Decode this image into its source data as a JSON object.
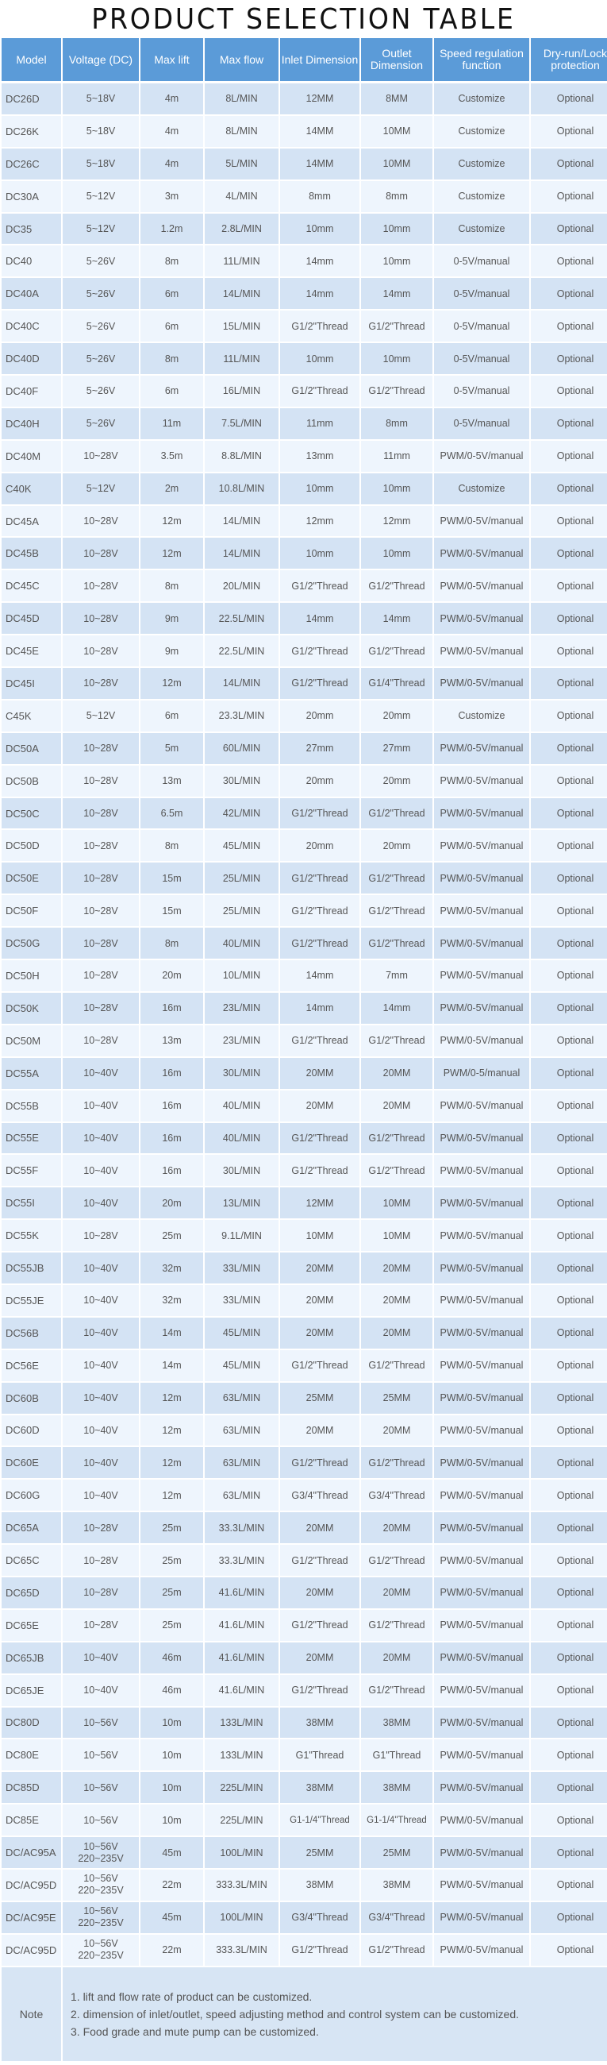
{
  "title": "PRODUCT SELECTION TABLE",
  "headers": [
    "Model",
    "Voltage (DC)",
    "Max lift",
    "Max flow",
    "Inlet Dimension",
    "Outlet Dimension",
    "Speed regulation function",
    "Dry-run/Lock protection"
  ],
  "rows": [
    [
      "DC26D",
      "5~18V",
      "4m",
      "8L/MIN",
      "12MM",
      "8MM",
      "Customize",
      "Optional"
    ],
    [
      "DC26K",
      "5~18V",
      "4m",
      "8L/MIN",
      "14MM",
      "10MM",
      "Customize",
      "Optional"
    ],
    [
      "DC26C",
      "5~18V",
      "4m",
      "5L/MIN",
      "14MM",
      "10MM",
      "Customize",
      "Optional"
    ],
    [
      "DC30A",
      "5~12V",
      "3m",
      "4L/MIN",
      "8mm",
      "8mm",
      "Customize",
      "Optional"
    ],
    [
      "DC35",
      "5~12V",
      "1.2m",
      "2.8L/MIN",
      "10mm",
      "10mm",
      "Customize",
      "Optional"
    ],
    [
      "DC40",
      "5~26V",
      "8m",
      "11L/MIN",
      "14mm",
      "10mm",
      "0-5V/manual",
      "Optional"
    ],
    [
      "DC40A",
      "5~26V",
      "6m",
      "14L/MIN",
      "14mm",
      "14mm",
      "0-5V/manual",
      "Optional"
    ],
    [
      "DC40C",
      "5~26V",
      "6m",
      "15L/MIN",
      "G1/2\"Thread",
      "G1/2\"Thread",
      "0-5V/manual",
      "Optional"
    ],
    [
      "DC40D",
      "5~26V",
      "8m",
      "11L/MIN",
      "10mm",
      "10mm",
      "0-5V/manual",
      "Optional"
    ],
    [
      "DC40F",
      "5~26V",
      "6m",
      "16L/MIN",
      "G1/2\"Thread",
      "G1/2\"Thread",
      "0-5V/manual",
      "Optional"
    ],
    [
      "DC40H",
      "5~26V",
      "11m",
      "7.5L/MIN",
      "11mm",
      "8mm",
      "0-5V/manual",
      "Optional"
    ],
    [
      "DC40M",
      "10~28V",
      "3.5m",
      "8.8L/MIN",
      "13mm",
      "11mm",
      "PWM/0-5V/manual",
      "Optional"
    ],
    [
      "C40K",
      "5~12V",
      "2m",
      "10.8L/MIN",
      "10mm",
      "10mm",
      "Customize",
      "Optional"
    ],
    [
      "DC45A",
      "10~28V",
      "12m",
      "14L/MIN",
      "12mm",
      "12mm",
      "PWM/0-5V/manual",
      "Optional"
    ],
    [
      "DC45B",
      "10~28V",
      "12m",
      "14L/MIN",
      "10mm",
      "10mm",
      "PWM/0-5V/manual",
      "Optional"
    ],
    [
      "DC45C",
      "10~28V",
      "8m",
      "20L/MIN",
      "G1/2\"Thread",
      "G1/2\"Thread",
      "PWM/0-5V/manual",
      "Optional"
    ],
    [
      "DC45D",
      "10~28V",
      "9m",
      "22.5L/MIN",
      "14mm",
      "14mm",
      "PWM/0-5V/manual",
      "Optional"
    ],
    [
      "DC45E",
      "10~28V",
      "9m",
      "22.5L/MIN",
      "G1/2\"Thread",
      "G1/2\"Thread",
      "PWM/0-5V/manual",
      "Optional"
    ],
    [
      "DC45I",
      "10~28V",
      "12m",
      "14L/MIN",
      "G1/2\"Thread",
      "G1/4\"Thread",
      "PWM/0-5V/manual",
      "Optional"
    ],
    [
      "C45K",
      "5~12V",
      "6m",
      "23.3L/MIN",
      "20mm",
      "20mm",
      "Customize",
      "Optional"
    ],
    [
      "DC50A",
      "10~28V",
      "5m",
      "60L/MIN",
      "27mm",
      "27mm",
      "PWM/0-5V/manual",
      "Optional"
    ],
    [
      "DC50B",
      "10~28V",
      "13m",
      "30L/MIN",
      "20mm",
      "20mm",
      "PWM/0-5V/manual",
      "Optional"
    ],
    [
      "DC50C",
      "10~28V",
      "6.5m",
      "42L/MIN",
      "G1/2\"Thread",
      "G1/2\"Thread",
      "PWM/0-5V/manual",
      "Optional"
    ],
    [
      "DC50D",
      "10~28V",
      "8m",
      "45L/MIN",
      "20mm",
      "20mm",
      "PWM/0-5V/manual",
      "Optional"
    ],
    [
      "DC50E",
      "10~28V",
      "15m",
      "25L/MIN",
      "G1/2\"Thread",
      "G1/2\"Thread",
      "PWM/0-5V/manual",
      "Optional"
    ],
    [
      "DC50F",
      "10~28V",
      "15m",
      "25L/MIN",
      "G1/2\"Thread",
      "G1/2\"Thread",
      "PWM/0-5V/manual",
      "Optional"
    ],
    [
      "DC50G",
      "10~28V",
      "8m",
      "40L/MIN",
      "G1/2\"Thread",
      "G1/2\"Thread",
      "PWM/0-5V/manual",
      "Optional"
    ],
    [
      "DC50H",
      "10~28V",
      "20m",
      "10L/MIN",
      "14mm",
      "7mm",
      "PWM/0-5V/manual",
      "Optional"
    ],
    [
      "DC50K",
      "10~28V",
      "16m",
      "23L/MIN",
      "14mm",
      "14mm",
      "PWM/0-5V/manual",
      "Optional"
    ],
    [
      "DC50M",
      "10~28V",
      "13m",
      "23L/MIN",
      "G1/2\"Thread",
      "G1/2\"Thread",
      "PWM/0-5V/manual",
      "Optional"
    ],
    [
      "DC55A",
      "10~40V",
      "16m",
      "30L/MIN",
      "20MM",
      "20MM",
      "PWM/0-5/manual",
      "Optional"
    ],
    [
      "DC55B",
      "10~40V",
      "16m",
      "40L/MIN",
      "20MM",
      "20MM",
      "PWM/0-5V/manual",
      "Optional"
    ],
    [
      "DC55E",
      "10~40V",
      "16m",
      "40L/MIN",
      "G1/2\"Thread",
      "G1/2\"Thread",
      "PWM/0-5V/manual",
      "Optional"
    ],
    [
      "DC55F",
      "10~40V",
      "16m",
      "30L/MIN",
      "G1/2\"Thread",
      "G1/2\"Thread",
      "PWM/0-5V/manual",
      "Optional"
    ],
    [
      "DC55I",
      "10~40V",
      "20m",
      "13L/MIN",
      "12MM",
      "10MM",
      "PWM/0-5V/manual",
      "Optional"
    ],
    [
      "DC55K",
      "10~28V",
      "25m",
      "9.1L/MIN",
      "10MM",
      "10MM",
      "PWM/0-5V/manual",
      "Optional"
    ],
    [
      "DC55JB",
      "10~40V",
      "32m",
      "33L/MIN",
      "20MM",
      "20MM",
      "PWM/0-5V/manual",
      "Optional"
    ],
    [
      "DC55JE",
      "10~40V",
      "32m",
      "33L/MIN",
      "20MM",
      "20MM",
      "PWM/0-5V/manual",
      "Optional"
    ],
    [
      "DC56B",
      "10~40V",
      "14m",
      "45L/MIN",
      "20MM",
      "20MM",
      "PWM/0-5V/manual",
      "Optional"
    ],
    [
      "DC56E",
      "10~40V",
      "14m",
      "45L/MIN",
      "G1/2\"Thread",
      "G1/2\"Thread",
      "PWM/0-5V/manual",
      "Optional"
    ],
    [
      "DC60B",
      "10~40V",
      "12m",
      "63L/MIN",
      "25MM",
      "25MM",
      "PWM/0-5V/manual",
      "Optional"
    ],
    [
      "DC60D",
      "10~40V",
      "12m",
      "63L/MIN",
      "20MM",
      "20MM",
      "PWM/0-5V/manual",
      "Optional"
    ],
    [
      "DC60E",
      "10~40V",
      "12m",
      "63L/MIN",
      "G1/2\"Thread",
      "G1/2\"Thread",
      "PWM/0-5V/manual",
      "Optional"
    ],
    [
      "DC60G",
      "10~40V",
      "12m",
      "63L/MIN",
      "G3/4\"Thread",
      "G3/4\"Thread",
      "PWM/0-5V/manual",
      "Optional"
    ],
    [
      "DC65A",
      "10~28V",
      "25m",
      "33.3L/MIN",
      "20MM",
      "20MM",
      "PWM/0-5V/manual",
      "Optional"
    ],
    [
      "DC65C",
      "10~28V",
      "25m",
      "33.3L/MIN",
      "G1/2\"Thread",
      "G1/2\"Thread",
      "PWM/0-5V/manual",
      "Optional"
    ],
    [
      "DC65D",
      "10~28V",
      "25m",
      "41.6L/MIN",
      "20MM",
      "20MM",
      "PWM/0-5V/manual",
      "Optional"
    ],
    [
      "DC65E",
      "10~28V",
      "25m",
      "41.6L/MIN",
      "G1/2\"Thread",
      "G1/2\"Thread",
      "PWM/0-5V/manual",
      "Optional"
    ],
    [
      "DC65JB",
      "10~40V",
      "46m",
      "41.6L/MIN",
      "20MM",
      "20MM",
      "PWM/0-5V/manual",
      "Optional"
    ],
    [
      "DC65JE",
      "10~40V",
      "46m",
      "41.6L/MIN",
      "G1/2\"Thread",
      "G1/2\"Thread",
      "PWM/0-5V/manual",
      "Optional"
    ],
    [
      "DC80D",
      "10~56V",
      "10m",
      "133L/MIN",
      "38MM",
      "38MM",
      "PWM/0-5V/manual",
      "Optional"
    ],
    [
      "DC80E",
      "10~56V",
      "10m",
      "133L/MIN",
      "G1\"Thread",
      "G1\"Thread",
      "PWM/0-5V/manual",
      "Optional"
    ],
    [
      "DC85D",
      "10~56V",
      "10m",
      "225L/MIN",
      "38MM",
      "38MM",
      "PWM/0-5V/manual",
      "Optional"
    ],
    [
      "DC85E",
      "10~56V",
      "10m",
      "225L/MIN",
      "G1-1/4\"Thread",
      "G1-1/4\"Thread",
      "PWM/0-5V/manual",
      "Optional"
    ],
    [
      "DC/AC95A",
      "10~56V\n220~235V",
      "45m",
      "100L/MIN",
      "25MM",
      "25MM",
      "PWM/0-5V/manual",
      "Optional"
    ],
    [
      "DC/AC95D",
      "10~56V\n220~235V",
      "22m",
      "333.3L/MIN",
      "38MM",
      "38MM",
      "PWM/0-5V/manual",
      "Optional"
    ],
    [
      "DC/AC95E",
      "10~56V\n220~235V",
      "45m",
      "100L/MIN",
      "G3/4\"Thread",
      "G3/4\"Thread",
      "PWM/0-5V/manual",
      "Optional"
    ],
    [
      "DC/AC95D",
      "10~56V\n220~235V",
      "22m",
      "333.3L/MIN",
      "G1/2\"Thread",
      "G1/2\"Thread",
      "PWM/0-5V/manual",
      "Optional"
    ]
  ],
  "note": {
    "label": "Note",
    "lines": [
      "1. lift and flow rate of product can be customized.",
      "2. dimension of inlet/outlet, speed adjusting method and control system can be customized.",
      "3. Food grade and mute pump can be customized."
    ]
  },
  "colors": {
    "header": "#5b9bd8",
    "row_dark": "#d4e3f4",
    "row_light": "#eef5fd"
  }
}
